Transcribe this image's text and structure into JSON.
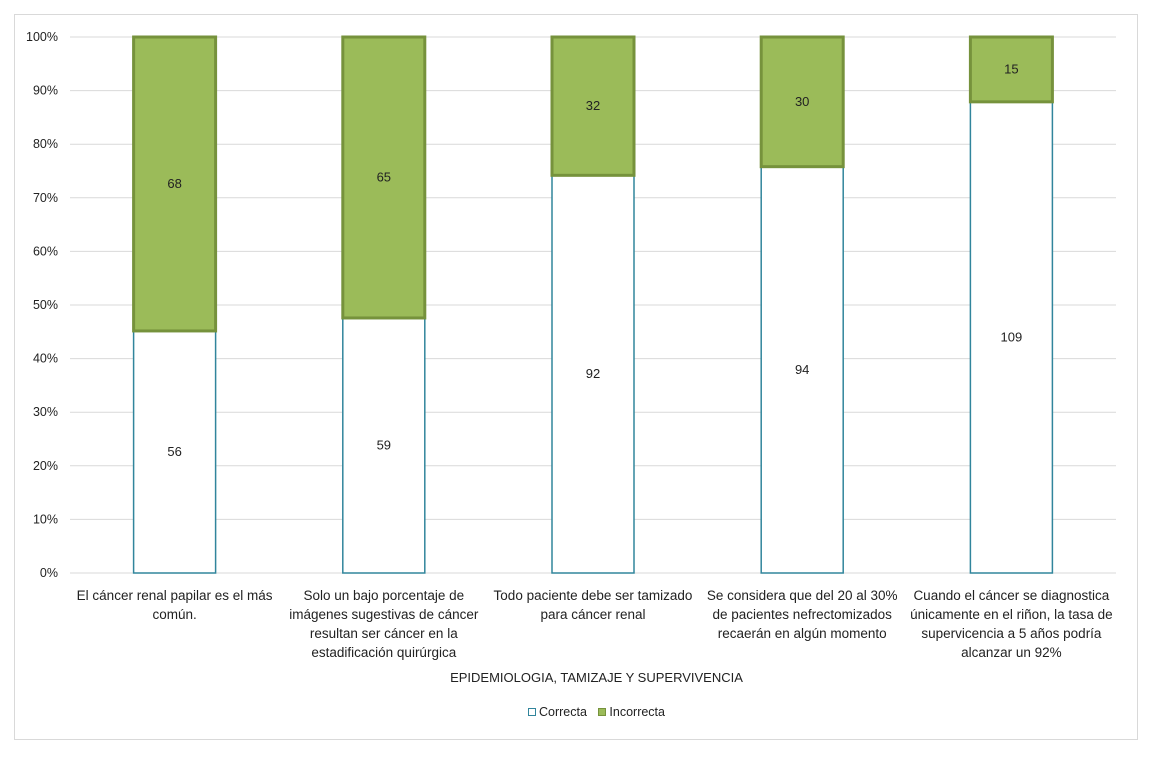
{
  "colors": {
    "correcta": "#ffffff",
    "correcta_border": "#31859c",
    "incorrecta": "#9bbb59",
    "incorrecta_border": "#76923c",
    "grid": "#d9d9d9"
  },
  "chart_data": {
    "type": "bar",
    "stacked": "percent",
    "xlabel": "EPIDEMIOLOGIA, TAMIZAJE Y SUPERVIVENCIA",
    "ylabel": "",
    "ylim": [
      0,
      100
    ],
    "yticks": [
      "0%",
      "10%",
      "20%",
      "30%",
      "40%",
      "50%",
      "60%",
      "70%",
      "80%",
      "90%",
      "100%"
    ],
    "grid": true,
    "legend_position": "bottom",
    "categories": [
      "El cáncer renal papilar es el más común.",
      "Solo un bajo porcentaje de imágenes sugestivas de cáncer resultan ser cáncer en la estadificación quirúrgica",
      "Todo paciente debe ser tamizado para cáncer renal",
      "Se considera que del 20 al 30% de pacientes nefrectomizados recaerán en algún momento",
      "Cuando el cáncer se diagnostica únicamente en el riñon, la tasa de supervicencia a 5 años podría alcanzar un 92%"
    ],
    "series": [
      {
        "name": "Correcta",
        "values": [
          56,
          59,
          92,
          94,
          109
        ]
      },
      {
        "name": "Incorrecta",
        "values": [
          68,
          65,
          32,
          30,
          15
        ]
      }
    ]
  }
}
